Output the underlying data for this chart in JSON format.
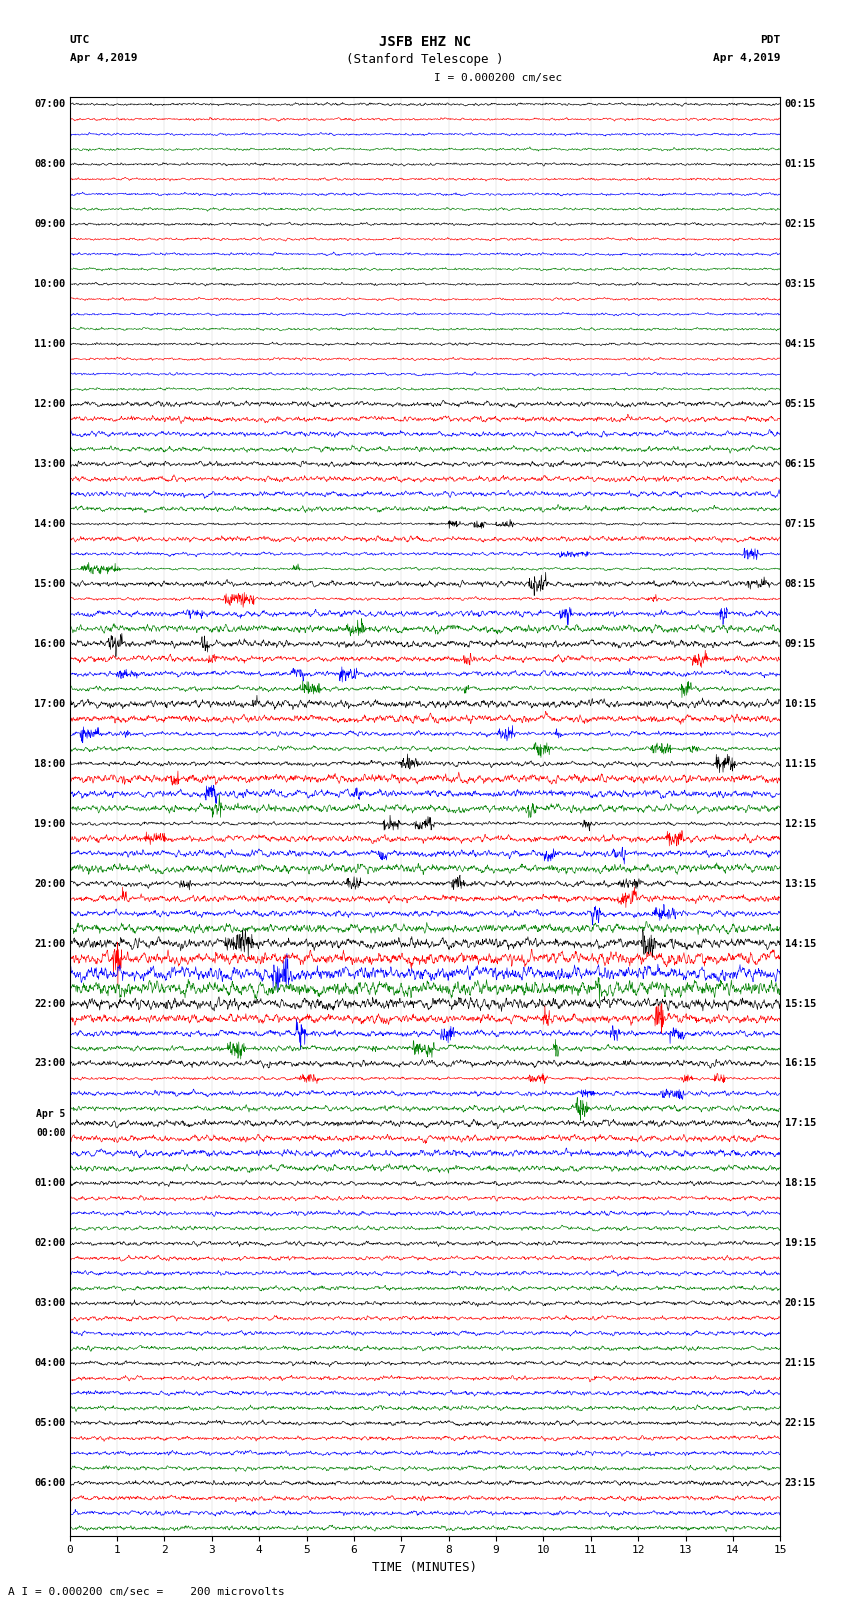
{
  "title_line1": "JSFB EHZ NC",
  "title_line2": "(Stanford Telescope )",
  "scale_label": "I = 0.000200 cm/sec",
  "utc_label": "UTC",
  "utc_date": "Apr 4,2019",
  "pdt_label": "PDT",
  "pdt_date": "Apr 4,2019",
  "xlabel": "TIME (MINUTES)",
  "bottom_label": "A I = 0.000200 cm/sec =    200 microvolts",
  "xlim": [
    0,
    15
  ],
  "xticks": [
    0,
    1,
    2,
    3,
    4,
    5,
    6,
    7,
    8,
    9,
    10,
    11,
    12,
    13,
    14,
    15
  ],
  "colors": [
    "black",
    "red",
    "blue",
    "green"
  ],
  "n_rows": 96,
  "figsize": [
    8.5,
    16.13
  ],
  "dpi": 100,
  "bg_color": "white",
  "left_hour_labels": [
    "07:00",
    "08:00",
    "09:00",
    "10:00",
    "11:00",
    "12:00",
    "13:00",
    "14:00",
    "15:00",
    "16:00",
    "17:00",
    "18:00",
    "19:00",
    "20:00",
    "21:00",
    "22:00",
    "23:00",
    "Apr 5\n00:00",
    "01:00",
    "02:00",
    "03:00",
    "04:00",
    "05:00",
    "06:00"
  ],
  "right_hour_labels": [
    "00:15",
    "01:15",
    "02:15",
    "03:15",
    "04:15",
    "05:15",
    "06:15",
    "07:15",
    "08:15",
    "09:15",
    "10:15",
    "11:15",
    "12:15",
    "13:15",
    "14:15",
    "15:15",
    "16:15",
    "17:15",
    "18:15",
    "19:15",
    "20:15",
    "21:15",
    "22:15",
    "23:15"
  ]
}
